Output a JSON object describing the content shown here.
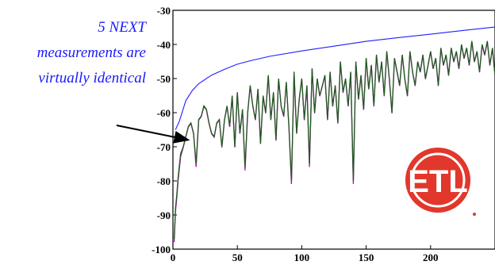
{
  "chart_data": {
    "type": "line",
    "title": "",
    "xlabel": "",
    "ylabel": "",
    "xlim": [
      0,
      250
    ],
    "ylim": [
      -100,
      -30
    ],
    "x_ticks": [
      0,
      50,
      100,
      150,
      200
    ],
    "x_tick_labels": [
      "0",
      "50",
      "100",
      "150",
      "200"
    ],
    "y_ticks": [
      -30,
      -40,
      -50,
      -60,
      -70,
      -80,
      -90,
      -100
    ],
    "y_tick_labels": [
      "-30",
      "-40",
      "-50",
      "-60",
      "-70",
      "-80",
      "-90",
      "-100"
    ],
    "grid": false,
    "series": [
      {
        "role": "limit",
        "color": "#1f1fff",
        "x": [
          2,
          5,
          10,
          15,
          20,
          30,
          40,
          50,
          60,
          75,
          100,
          125,
          150,
          175,
          200,
          225,
          250
        ],
        "y": [
          -65,
          -62.5,
          -56.5,
          -53.5,
          -51.5,
          -49,
          -47.3,
          -45.8,
          -44.8,
          -43.5,
          -41.9,
          -40.5,
          -39.1,
          -38,
          -37,
          -35.9,
          -34.9
        ]
      },
      {
        "role": "measurement",
        "color": "#1e5c1e",
        "x": [
          1,
          2,
          3,
          4,
          6,
          8,
          10,
          12,
          14,
          16,
          18,
          20,
          22,
          24,
          26,
          28,
          30,
          32,
          34,
          36,
          38,
          40,
          42,
          44,
          46,
          48,
          50,
          52,
          54,
          56,
          58,
          60,
          62,
          64,
          66,
          68,
          70,
          72,
          74,
          76,
          78,
          80,
          82,
          84,
          86,
          88,
          90,
          92,
          94,
          96,
          98,
          100,
          102,
          104,
          106,
          108,
          110,
          112,
          114,
          116,
          118,
          120,
          122,
          124,
          126,
          128,
          130,
          132,
          134,
          136,
          138,
          140,
          142,
          144,
          146,
          148,
          150,
          152,
          154,
          156,
          158,
          160,
          162,
          164,
          166,
          168,
          170,
          172,
          174,
          176,
          178,
          180,
          182,
          184,
          186,
          188,
          190,
          192,
          194,
          196,
          198,
          200,
          202,
          204,
          206,
          208,
          210,
          212,
          214,
          216,
          218,
          220,
          222,
          224,
          226,
          228,
          230,
          232,
          234,
          236,
          238,
          240,
          242,
          244,
          246,
          248,
          250
        ],
        "y": [
          -97,
          -88,
          -84,
          -79,
          -72,
          -70,
          -67,
          -64,
          -63,
          -66,
          -75,
          -62,
          -61,
          -58,
          -59,
          -63,
          -66,
          -67,
          -63,
          -62,
          -70,
          -62,
          -58,
          -64,
          -55,
          -70,
          -54,
          -66,
          -59,
          -76,
          -60,
          -52,
          -58,
          -62,
          -53,
          -69,
          -55,
          -60,
          -49,
          -62,
          -54,
          -68,
          -50,
          -58,
          -61,
          -51,
          -64,
          -80,
          -48,
          -66,
          -56,
          -50,
          -62,
          -52,
          -75,
          -47,
          -60,
          -50,
          -55,
          -52,
          -49,
          -62,
          -48,
          -58,
          -52,
          -63,
          -45,
          -54,
          -50,
          -58,
          -48,
          -80,
          -45,
          -56,
          -49,
          -59,
          -44,
          -53,
          -46,
          -58,
          -43,
          -51,
          -45,
          -55,
          -42,
          -50,
          -60,
          -44,
          -48,
          -52,
          -43,
          -50,
          -55,
          -42,
          -48,
          -52,
          -45,
          -48,
          -43,
          -50,
          -46,
          -42,
          -47,
          -44,
          -52,
          -41,
          -46,
          -43,
          -49,
          -41,
          -45,
          -42,
          -47,
          -40,
          -44,
          -41,
          -46,
          -39,
          -45,
          -42,
          -48,
          -40,
          -43,
          -39,
          -46,
          -41,
          -49
        ]
      }
    ],
    "annotation": {
      "lines": [
        "5 NEXT",
        "measurements are",
        "virtually identical"
      ],
      "arrow_target": {
        "x": 12,
        "y": -68
      }
    },
    "logo": {
      "text": "ETL",
      "color": "#e2372b"
    }
  }
}
